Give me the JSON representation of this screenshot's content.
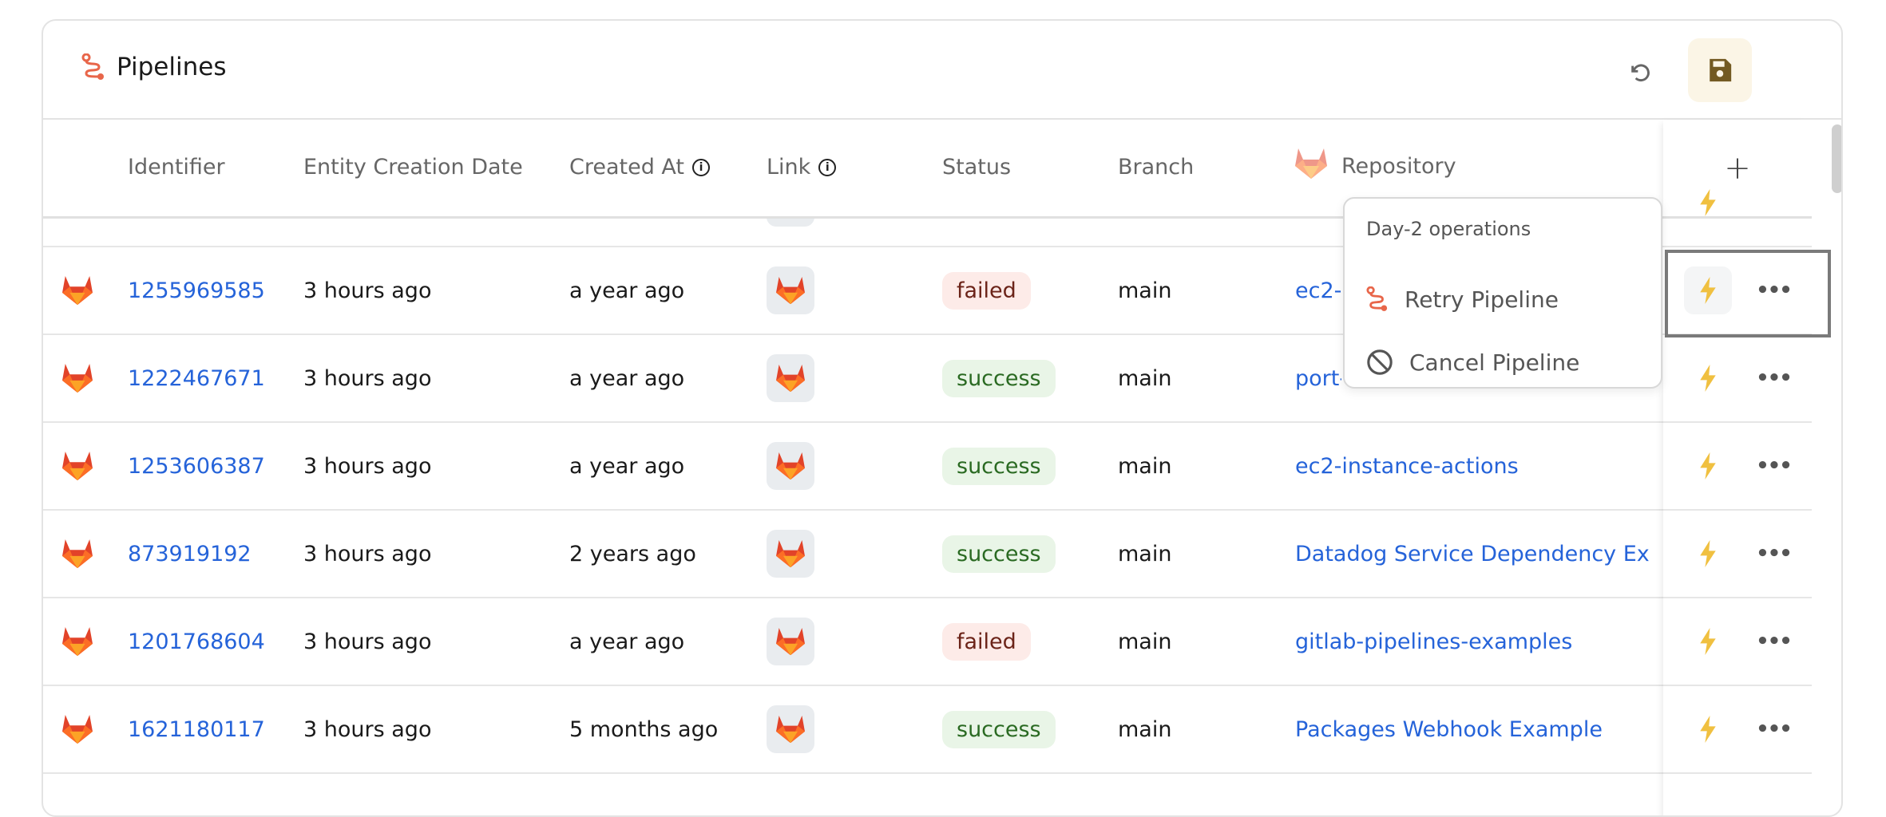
{
  "header": {
    "title": "Pipelines",
    "icon": "pipeline-icon",
    "refresh_icon": "undo-icon",
    "save_icon": "save-icon"
  },
  "columns": [
    "Identifier",
    "Entity Creation Date",
    "Created At",
    "Link",
    "Status",
    "Branch",
    "Repository"
  ],
  "add_column_label": "+",
  "colors": {
    "link": "#2563d9",
    "failed_bg": "#fdebe8",
    "failed_text": "#6b2318",
    "success_bg": "#e9f5e7",
    "success_text": "#2a6a22",
    "accent": "#e8664a",
    "bolt": "#f0c040"
  },
  "rows": [
    {
      "id": "1255969585",
      "entity_created": "3 hours ago",
      "created_at": "a year ago",
      "status": "failed",
      "branch": "main",
      "repository": "ec2-instance-actions"
    },
    {
      "id": "1222467671",
      "entity_created": "3 hours ago",
      "created_at": "a year ago",
      "status": "success",
      "branch": "main",
      "repository": "port-"
    },
    {
      "id": "1253606387",
      "entity_created": "3 hours ago",
      "created_at": "a year ago",
      "status": "success",
      "branch": "main",
      "repository": "ec2-instance-actions"
    },
    {
      "id": "873919192",
      "entity_created": "3 hours ago",
      "created_at": "2 years ago",
      "status": "success",
      "branch": "main",
      "repository": "Datadog Service Dependency Ex"
    },
    {
      "id": "1201768604",
      "entity_created": "3 hours ago",
      "created_at": "a year ago",
      "status": "failed",
      "branch": "main",
      "repository": "gitlab-pipelines-examples"
    },
    {
      "id": "1621180117",
      "entity_created": "3 hours ago",
      "created_at": "5 months ago",
      "status": "success",
      "branch": "main",
      "repository": "Packages Webhook Example"
    }
  ],
  "menu": {
    "heading": "Day-2 operations",
    "items": [
      {
        "label": "Retry Pipeline",
        "icon": "pipeline-icon"
      },
      {
        "label": "Cancel Pipeline",
        "icon": "cancel-icon"
      }
    ]
  }
}
